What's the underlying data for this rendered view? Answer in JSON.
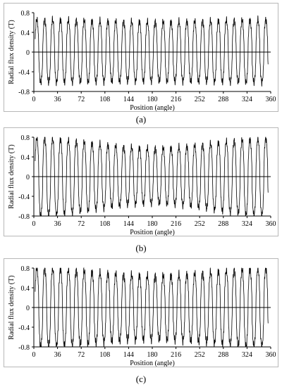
{
  "chart_data": [
    {
      "type": "line",
      "panel": "(a)",
      "xlabel": "Position  (angle)",
      "ylabel": "Radial flux density  (T)",
      "xticks": [
        0,
        36,
        72,
        108,
        144,
        180,
        216,
        252,
        288,
        324,
        360
      ],
      "yticks": [
        "0.8",
        "0.4",
        "0",
        "-0.4",
        "-0.8"
      ],
      "xlim": [
        0,
        360
      ],
      "ylim": [
        -0.8,
        0.8
      ],
      "grid": false,
      "waveform": {
        "periods": 30,
        "peak_min": 0.62,
        "peak_max": 0.66,
        "trough_min": -0.6,
        "trough_max": -0.62,
        "ripple": 0.1
      }
    },
    {
      "type": "line",
      "panel": "(b)",
      "xlabel": "Position  (angle)",
      "ylabel": "Radial flux density  (T)",
      "xticks": [
        0,
        36,
        72,
        108,
        144,
        180,
        216,
        252,
        288,
        324,
        360
      ],
      "yticks": [
        "0.8",
        "0.4",
        "0",
        "-0.4",
        "-0.8"
      ],
      "xlim": [
        0,
        360
      ],
      "ylim": [
        -0.8,
        0.8
      ],
      "grid": false,
      "waveform": {
        "periods": 30,
        "peak_min": 0.58,
        "peak_max": 0.78,
        "trough_min": -0.55,
        "trough_max": -0.8,
        "ripple": 0.1
      }
    },
    {
      "type": "line",
      "panel": "(c)",
      "xlabel": "Position  (angle)",
      "ylabel": "Radial flux density  (T)",
      "xticks": [
        0,
        36,
        72,
        108,
        144,
        180,
        216,
        252,
        288,
        324,
        360
      ],
      "yticks": [
        "0.8",
        "0.4",
        "0",
        "-0.4",
        "-0.8"
      ],
      "xlim": [
        0,
        360
      ],
      "ylim": [
        -0.8,
        0.8
      ],
      "grid": false,
      "waveform": {
        "periods": 30,
        "peak_min": 0.65,
        "peak_max": 0.8,
        "trough_min": -0.66,
        "trough_max": -0.8,
        "ripple": 0.12
      }
    }
  ],
  "colors": {
    "line": "#000000",
    "frame": "#b8b8b8"
  }
}
